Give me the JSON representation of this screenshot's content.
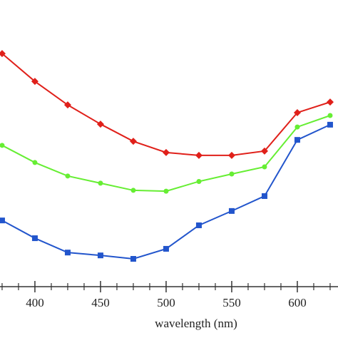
{
  "chart_data": {
    "type": "line",
    "xlabel": "wavelength (nm)",
    "x": [
      375,
      400,
      425,
      450,
      475,
      500,
      525,
      550,
      575,
      600,
      625
    ],
    "xlim": [
      373.4,
      631
    ],
    "xticks": [
      400,
      450,
      500,
      550,
      600
    ],
    "xminor_ticks": [
      375,
      387.5,
      412.5,
      425,
      437.5,
      462.5,
      475,
      487.5,
      512.5,
      525,
      537.5,
      562.5,
      575,
      587.5,
      612.5,
      625
    ],
    "ylim": [
      0,
      100
    ],
    "series": [
      {
        "color": "#e0201a",
        "marker": "diamond",
        "values": [
          81.3,
          71.6,
          63.4,
          56.7,
          50.7,
          46.8,
          45.8,
          45.8,
          47.3,
          60.7,
          64.4
        ]
      },
      {
        "color": "#66ee33",
        "marker": "circle",
        "values": [
          49.3,
          43.3,
          38.6,
          36.1,
          33.6,
          33.3,
          36.7,
          39.3,
          41.8,
          55.7,
          59.7
        ]
      },
      {
        "color": "#2255cc",
        "marker": "square",
        "values": [
          23.1,
          16.9,
          11.9,
          10.9,
          9.7,
          13.2,
          21.4,
          26.4,
          31.6,
          51.2,
          56.5
        ]
      }
    ]
  }
}
